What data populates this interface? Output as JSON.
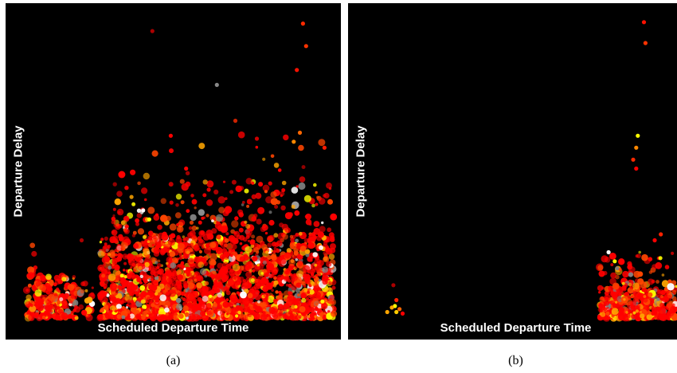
{
  "panels": [
    {
      "id": "a",
      "xlabel": "Scheduled Departure Time",
      "ylabel": "Departure Delay",
      "caption": "(a)"
    },
    {
      "id": "b",
      "xlabel": "Scheduled Departure Time",
      "ylabel": "Departure Delay",
      "caption": "(b)"
    }
  ],
  "chart_data": [
    {
      "type": "scatter",
      "xlabel": "Scheduled Departure Time",
      "ylabel": "Departure Delay",
      "xlim": [
        0,
        1
      ],
      "ylim": [
        0,
        1
      ],
      "grid": false,
      "legend": "none",
      "background": "#000000",
      "point_colors": [
        "#ff0000",
        "#ff4500",
        "#ffa500",
        "#ffff00",
        "#ffffff",
        "#808080",
        "#8b0000"
      ],
      "clusters": [
        {
          "x_range": [
            0.0,
            0.16
          ],
          "y_range": [
            0.0,
            0.14
          ],
          "count": 260,
          "peak": 0.02
        },
        {
          "x_range": [
            0.0,
            0.03
          ],
          "y_range": [
            0.14,
            0.28
          ],
          "count": 10
        },
        {
          "x_range": [
            0.16,
            0.22
          ],
          "y_range": [
            0.0,
            0.12
          ],
          "count": 30
        },
        {
          "x_range": [
            0.24,
            1.0
          ],
          "y_range": [
            0.0,
            0.27
          ],
          "count": 2200,
          "peak": 0.02
        },
        {
          "x_range": [
            0.28,
            1.0
          ],
          "y_range": [
            0.27,
            0.45
          ],
          "count": 240
        },
        {
          "x_range": [
            0.3,
            1.0
          ],
          "y_range": [
            0.45,
            0.62
          ],
          "count": 28
        }
      ],
      "points": [
        {
          "x": 0.9,
          "y": 0.985,
          "color": "#ff2a00"
        },
        {
          "x": 0.91,
          "y": 0.91,
          "color": "#ff3300"
        },
        {
          "x": 0.88,
          "y": 0.83,
          "color": "#ff1100"
        },
        {
          "x": 0.89,
          "y": 0.62,
          "color": "#ff6600"
        },
        {
          "x": 0.87,
          "y": 0.59,
          "color": "#ff8800"
        },
        {
          "x": 0.97,
          "y": 0.57,
          "color": "#ff1a00"
        },
        {
          "x": 0.41,
          "y": 0.96,
          "color": "#aa0000"
        },
        {
          "x": 0.47,
          "y": 0.61,
          "color": "#ff0000"
        },
        {
          "x": 0.52,
          "y": 0.5,
          "color": "#ff0000"
        },
        {
          "x": 0.38,
          "y": 0.36,
          "color": "#ffffff"
        },
        {
          "x": 0.4,
          "y": 0.33,
          "color": "#ffff00"
        },
        {
          "x": 0.75,
          "y": 0.6,
          "color": "#cc0000"
        },
        {
          "x": 0.62,
          "y": 0.78,
          "color": "#888888"
        },
        {
          "x": 0.68,
          "y": 0.66,
          "color": "#cc2200"
        },
        {
          "x": 0.18,
          "y": 0.26,
          "color": "#aa0000"
        }
      ]
    },
    {
      "type": "scatter",
      "xlabel": "Scheduled Departure Time",
      "ylabel": "Departure Delay",
      "xlim": [
        0,
        1
      ],
      "ylim": [
        0,
        1
      ],
      "grid": false,
      "legend": "none",
      "background": "#000000",
      "point_colors": [
        "#ff0000",
        "#ff4500",
        "#ffa500",
        "#ffff00",
        "#ffffff",
        "#808080"
      ],
      "clusters": [
        {
          "x_range": [
            0.75,
            1.0
          ],
          "y_range": [
            0.0,
            0.1
          ],
          "count": 420,
          "peak": 0.02
        },
        {
          "x_range": [
            0.75,
            1.0
          ],
          "y_range": [
            0.1,
            0.22
          ],
          "count": 70
        }
      ],
      "points": [
        {
          "x": 0.085,
          "y": 0.04,
          "color": "#ffff00"
        },
        {
          "x": 0.075,
          "y": 0.035,
          "color": "#ffa500"
        },
        {
          "x": 0.1,
          "y": 0.03,
          "color": "#ff6600"
        },
        {
          "x": 0.09,
          "y": 0.02,
          "color": "#ffcc00"
        },
        {
          "x": 0.06,
          "y": 0.02,
          "color": "#ffa500"
        },
        {
          "x": 0.11,
          "y": 0.015,
          "color": "#ff0000"
        },
        {
          "x": 0.08,
          "y": 0.11,
          "color": "#aa0000"
        },
        {
          "x": 0.09,
          "y": 0.06,
          "color": "#ff2200"
        },
        {
          "x": 0.895,
          "y": 0.99,
          "color": "#ff1100"
        },
        {
          "x": 0.9,
          "y": 0.92,
          "color": "#ff3300"
        },
        {
          "x": 0.875,
          "y": 0.61,
          "color": "#ffff00"
        },
        {
          "x": 0.87,
          "y": 0.57,
          "color": "#ff8800"
        },
        {
          "x": 0.86,
          "y": 0.53,
          "color": "#ff2a00"
        },
        {
          "x": 0.87,
          "y": 0.5,
          "color": "#ff0000"
        },
        {
          "x": 0.78,
          "y": 0.22,
          "color": "#ffffff"
        },
        {
          "x": 0.8,
          "y": 0.19,
          "color": "#ffff00"
        },
        {
          "x": 0.93,
          "y": 0.26,
          "color": "#ff0000"
        },
        {
          "x": 0.95,
          "y": 0.28,
          "color": "#ff2200"
        }
      ]
    }
  ]
}
